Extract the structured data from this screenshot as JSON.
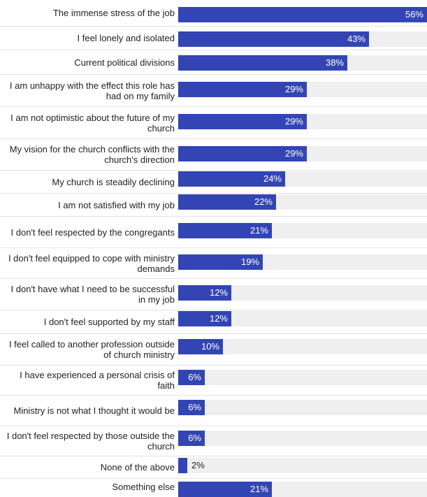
{
  "chart_data": {
    "type": "bar",
    "orientation": "horizontal",
    "xlim": [
      0,
      56
    ],
    "bar_color": "#3345b4",
    "track_color": "#efefef",
    "grid": false,
    "categories": [
      "The immense stress of the job",
      "I feel lonely and isolated",
      "Current political divisions",
      "I am unhappy with the effect this role has had on my family",
      "I am not optimistic about the future of my church",
      "My vision for the church conflicts with the church's direction",
      "My church is steadily declining",
      "I am not satisfied with my job",
      "I don't feel respected by the congregants",
      "I don't feel equipped to cope with ministry demands",
      "I don't have what I need to be successful in my job",
      "I don't feel supported by my staff",
      "I feel called to another profession outside of church ministry",
      "I have experienced a personal crisis of faith",
      "Ministry is not what I thought it would be",
      "I don't feel respected by those outside the church",
      "None of the above",
      "Something else"
    ],
    "values": [
      56,
      43,
      38,
      29,
      29,
      29,
      24,
      22,
      21,
      19,
      12,
      12,
      10,
      6,
      6,
      6,
      2,
      21
    ],
    "value_labels": [
      "56%",
      "43%",
      "38%",
      "29%",
      "29%",
      "29%",
      "24%",
      "22%",
      "21%",
      "19%",
      "12%",
      "12%",
      "10%",
      "6%",
      "6%",
      "6%",
      "2%",
      "21%"
    ]
  }
}
